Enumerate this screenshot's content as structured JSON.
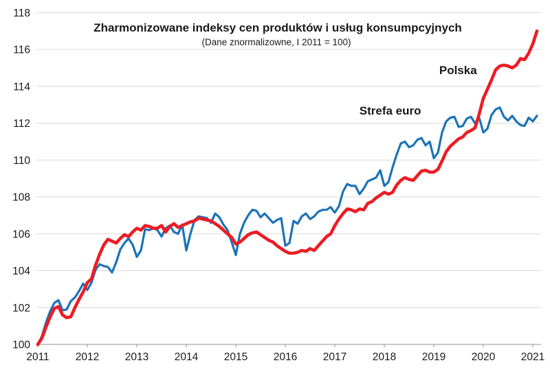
{
  "title": "Zharmonizowane indeksy cen produktów i usług konsumpcyjnych",
  "subtitle": "(Dane znormalizowne, I 2011 = 100)",
  "chart_data": {
    "type": "line",
    "x_start_year": 2011,
    "x_step_months": 1,
    "grid": true,
    "background": "#ffffff",
    "gridline_color": "#d9d9d9",
    "axis_line_color": "#a6a6a6",
    "label_color": "#1a1a1a",
    "y_axis": {
      "min": 100,
      "max": 118,
      "tick_step": 2,
      "ticks": [
        100,
        102,
        104,
        106,
        108,
        110,
        112,
        114,
        116,
        118
      ]
    },
    "x_axis": {
      "ticks": [
        2011,
        2012,
        2013,
        2014,
        2015,
        2016,
        2017,
        2018,
        2019,
        2020,
        2021
      ]
    },
    "series": [
      {
        "name": "Strefa euro",
        "color": "#1a73b8",
        "stroke_width": 3.2,
        "values": [
          100.0,
          100.45,
          101.2,
          101.8,
          102.25,
          102.4,
          101.85,
          101.9,
          102.35,
          102.55,
          102.9,
          103.3,
          102.95,
          103.35,
          104.05,
          104.35,
          104.25,
          104.2,
          103.9,
          104.45,
          105.15,
          105.5,
          105.75,
          105.4,
          104.75,
          105.1,
          106.25,
          106.2,
          106.3,
          106.2,
          105.85,
          106.3,
          106.45,
          106.1,
          106.0,
          106.5,
          105.1,
          106.0,
          106.75,
          106.95,
          106.9,
          106.85,
          106.6,
          107.1,
          106.9,
          106.5,
          106.2,
          105.55,
          104.85,
          106.0,
          106.6,
          107.0,
          107.3,
          107.25,
          106.9,
          107.1,
          106.85,
          106.6,
          106.75,
          106.85,
          105.35,
          105.5,
          106.7,
          106.55,
          106.95,
          107.1,
          106.8,
          106.95,
          107.2,
          107.3,
          107.3,
          107.45,
          107.15,
          107.5,
          108.3,
          108.7,
          108.6,
          108.6,
          108.15,
          108.45,
          108.85,
          108.95,
          109.05,
          109.45,
          108.6,
          108.8,
          109.6,
          110.3,
          110.9,
          111.0,
          110.7,
          110.8,
          111.1,
          111.2,
          110.8,
          111.0,
          110.1,
          110.4,
          111.5,
          112.1,
          112.3,
          112.35,
          111.8,
          111.85,
          112.25,
          112.35,
          112.0,
          112.3,
          111.5,
          111.7,
          112.45,
          112.75,
          112.85,
          112.35,
          112.15,
          112.4,
          112.1,
          111.9,
          111.85,
          112.3,
          112.1,
          112.4
        ]
      },
      {
        "name": "Polska",
        "color": "#ed1c24",
        "stroke_width": 4.6,
        "values": [
          100.0,
          100.35,
          100.95,
          101.5,
          101.95,
          102.05,
          101.6,
          101.45,
          101.5,
          102.0,
          102.45,
          102.85,
          103.35,
          103.55,
          104.3,
          104.9,
          105.4,
          105.7,
          105.6,
          105.5,
          105.75,
          105.95,
          105.85,
          106.1,
          106.3,
          106.2,
          106.45,
          106.4,
          106.3,
          106.3,
          106.45,
          106.1,
          106.4,
          106.55,
          106.35,
          106.45,
          106.55,
          106.65,
          106.7,
          106.85,
          106.8,
          106.75,
          106.7,
          106.55,
          106.4,
          106.2,
          106.0,
          105.8,
          105.45,
          105.55,
          105.75,
          105.95,
          106.05,
          106.1,
          105.95,
          105.8,
          105.65,
          105.55,
          105.35,
          105.2,
          105.05,
          104.95,
          104.95,
          105.0,
          105.1,
          105.05,
          105.2,
          105.1,
          105.35,
          105.6,
          105.85,
          106.0,
          106.45,
          106.8,
          107.1,
          107.35,
          107.3,
          107.2,
          107.35,
          107.3,
          107.65,
          107.75,
          107.95,
          108.1,
          108.25,
          108.15,
          108.25,
          108.65,
          108.9,
          109.05,
          108.95,
          108.9,
          109.15,
          109.4,
          109.45,
          109.35,
          109.35,
          109.5,
          109.95,
          110.45,
          110.75,
          110.95,
          111.15,
          111.25,
          111.5,
          111.6,
          111.75,
          112.5,
          113.35,
          113.85,
          114.35,
          114.9,
          115.1,
          115.15,
          115.1,
          115.0,
          115.15,
          115.5,
          115.45,
          115.8,
          116.3,
          117.0
        ]
      }
    ],
    "annotations": [
      {
        "text": "Strefa euro",
        "color": "#1a73b8",
        "x_year": 2018.12,
        "y_value": 112.69
      },
      {
        "text": "Polska",
        "color": "#ed1c24",
        "x_year": 2019.49,
        "y_value": 114.89
      }
    ],
    "legend_position": "inline-labels"
  }
}
